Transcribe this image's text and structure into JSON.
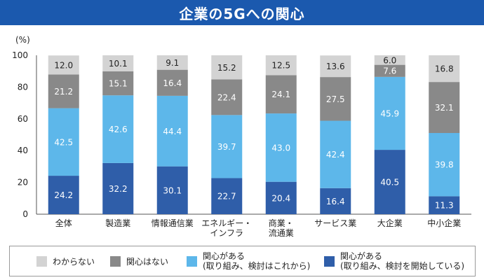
{
  "header": {
    "title": "企業の5Gへの関心"
  },
  "colors": {
    "title_bar": "#1b59ae",
    "unknown": "#d3d3d3",
    "not_interested": "#898989",
    "interested_future": "#5db7ea",
    "interested_started": "#2f5ea9"
  },
  "chart_data": {
    "type": "bar",
    "stacked": true,
    "ylabel": "(%)",
    "ylim": [
      0,
      100
    ],
    "yticks": [
      0,
      20,
      40,
      60,
      80,
      100
    ],
    "grid": false,
    "legend_position": "bottom",
    "categories": [
      "全体",
      "製造業",
      "情報通信業",
      "エネルギー・\nインフラ",
      "商業・\n流通業",
      "サービス業",
      "大企業",
      "中小企業"
    ],
    "series": [
      {
        "name": "関心がある\n(取り組み、検討を開始している)",
        "color": "#2f5ea9",
        "values": [
          24.2,
          32.2,
          30.1,
          22.7,
          20.4,
          16.4,
          40.5,
          11.3
        ]
      },
      {
        "name": "関心がある\n(取り組み、検討はこれから)",
        "color": "#5db7ea",
        "values": [
          42.5,
          42.6,
          44.4,
          39.7,
          43.0,
          42.4,
          45.9,
          39.8
        ]
      },
      {
        "name": "関心はない",
        "color": "#898989",
        "values": [
          21.2,
          15.1,
          16.4,
          22.4,
          24.1,
          27.5,
          7.6,
          32.1
        ]
      },
      {
        "name": "わからない",
        "color": "#d3d3d3",
        "values": [
          12.0,
          10.1,
          9.1,
          15.2,
          12.5,
          13.6,
          6.0,
          16.8
        ]
      }
    ]
  },
  "legend": {
    "items": [
      {
        "label": "わからない",
        "color": "#d3d3d3"
      },
      {
        "label": "関心はない",
        "color": "#898989"
      },
      {
        "label": "関心がある\n(取り組み、検討はこれから)",
        "color": "#5db7ea"
      },
      {
        "label": "関心がある\n(取り組み、検討を開始している)",
        "color": "#2f5ea9"
      }
    ]
  }
}
